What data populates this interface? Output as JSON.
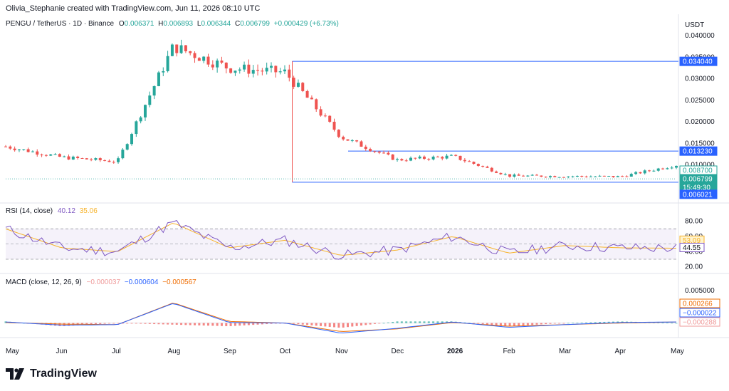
{
  "header": {
    "created_by": "Olivia_Stephanie created with TradingView.com, Jun 11, 2026 08:10 UTC"
  },
  "legend": {
    "symbol": "PENGU / TetherUS · 1D · Binance",
    "open_label": "O",
    "open": "0.006371",
    "high_label": "H",
    "high": "0.006893",
    "low_label": "L",
    "low": "0.006344",
    "close_label": "C",
    "close": "0.006799",
    "change": "+0.000429 (+6.73%)"
  },
  "price_axis": {
    "currency": "USDT",
    "ticks": [
      "0.040000",
      "0.035000",
      "0.030000",
      "0.025000",
      "0.020000",
      "0.015000",
      "0.010000"
    ],
    "badges": [
      {
        "value": "0.034040",
        "color": "#2962ff",
        "text_color": "#ffffff"
      },
      {
        "value": "0.013230",
        "color": "#2962ff",
        "text_color": "#ffffff"
      },
      {
        "value": "0.008700",
        "color": "#ffffff",
        "text_color": "#26a69a",
        "border": "#26a69a"
      },
      {
        "value": "0.006799",
        "color": "#26a69a",
        "text_color": "#ffffff"
      },
      {
        "value": "15:49:30",
        "color": "#26a69a",
        "text_color": "#ffffff"
      },
      {
        "value": "0.006021",
        "color": "#2962ff",
        "text_color": "#ffffff"
      }
    ]
  },
  "rsi": {
    "label": "RSI (14, close)",
    "value": "40.12",
    "ma_value": "35.06",
    "ticks": [
      "80.00",
      "60.00",
      "40.00",
      "20.00"
    ],
    "badges": [
      {
        "value": "53.09",
        "color": "#fff3cd",
        "text_color": "#f7b32b",
        "border": "#f7b32b"
      },
      {
        "value": "44.55",
        "color": "#ffffff",
        "text_color": "#131722",
        "border": "#7e57c2"
      }
    ]
  },
  "macd": {
    "label": "MACD (close, 12, 26, 9)",
    "hist": "−0.000037",
    "macd": "−0.000604",
    "signal": "−0.000567",
    "ticks": [
      "0.005000",
      "0.000000"
    ],
    "badges": [
      {
        "value": "0.000266",
        "color": "#ffffff",
        "text_color": "#ef6c00",
        "border": "#ef6c00"
      },
      {
        "value": "−0.000022",
        "color": "#ffffff",
        "text_color": "#2962ff",
        "border": "#2962ff"
      },
      {
        "value": "−0.000288",
        "color": "#ffffff",
        "text_color": "#ef9a9a",
        "border": "#ef9a9a"
      }
    ]
  },
  "time_axis": [
    "May",
    "Jun",
    "Jul",
    "Aug",
    "Sep",
    "Oct",
    "Nov",
    "Dec",
    "2026",
    "Feb",
    "Mar",
    "Apr",
    "May"
  ],
  "branding": "TradingView",
  "colors": {
    "up": "#26a69a",
    "down": "#ef5350",
    "level": "#2962ff",
    "rsi_line": "#7e57c2",
    "rsi_ma": "#f7b32b",
    "macd_line": "#2962ff",
    "signal_line": "#ef6c00"
  },
  "chart_data": {
    "type": "line",
    "title": "PENGU / TetherUS · 1D · Binance",
    "xlabel": "",
    "ylabel": "USDT",
    "x": [
      "May",
      "Jun",
      "Jul",
      "Aug",
      "Sep",
      "Oct",
      "Nov",
      "Dec",
      "2026",
      "Feb",
      "Mar",
      "Apr",
      "May"
    ],
    "ylim": [
      0.005,
      0.041
    ],
    "series": [
      {
        "name": "PENGU / TetherUS",
        "values": [
          0.0143,
          0.0118,
          0.0108,
          0.0375,
          0.0325,
          0.0315,
          0.0165,
          0.0112,
          0.012,
          0.0075,
          0.0074,
          0.0073,
          0.01
        ]
      }
    ],
    "levels": [
      0.03404,
      0.01323,
      0.006021
    ],
    "rsi": {
      "values": [
        70,
        45,
        40,
        78,
        45,
        55,
        35,
        42,
        60,
        38,
        48,
        45,
        44.5
      ],
      "ylim": [
        15,
        90
      ],
      "band": [
        30,
        70
      ]
    },
    "macd": {
      "macd": [
        0.0002,
        -0.0004,
        -0.0003,
        0.0037,
        0.0001,
        0.0,
        -0.0019,
        -0.001,
        0.0002,
        -0.0008,
        -0.0003,
        0.0001,
        0.0002
      ],
      "signal": [
        0.0001,
        -0.0002,
        -0.0003,
        0.0038,
        0.0003,
        0.0,
        -0.0016,
        -0.0011,
        0.0001,
        -0.0006,
        -0.0003,
        0.0,
        0.0002
      ],
      "ylim": [
        -0.0022,
        0.0065
      ]
    }
  }
}
